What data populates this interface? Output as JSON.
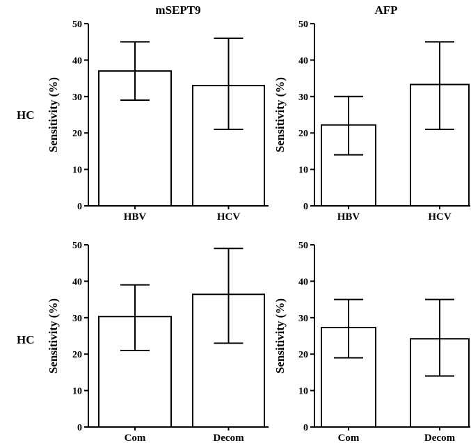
{
  "row_labels": [
    "HC",
    "HC"
  ],
  "chart_data": [
    {
      "type": "bar",
      "title": "mSEPT9",
      "ylabel": "Sensitivity (%)",
      "xlabel": "",
      "ylim": [
        0,
        50
      ],
      "yticks": [
        0,
        10,
        20,
        30,
        40,
        50
      ],
      "categories": [
        "HBV",
        "HCV"
      ],
      "values": [
        37,
        33
      ],
      "error_low": [
        29,
        21
      ],
      "error_high": [
        45,
        46
      ]
    },
    {
      "type": "bar",
      "title": "AFP",
      "ylabel": "Sensitivity (%)",
      "xlabel": "",
      "ylim": [
        0,
        50
      ],
      "yticks": [
        0,
        10,
        20,
        30,
        40,
        50
      ],
      "categories": [
        "HBV",
        "HCV"
      ],
      "values": [
        22.2,
        33.3
      ],
      "error_low": [
        14,
        21
      ],
      "error_high": [
        30,
        45
      ]
    },
    {
      "type": "bar",
      "title": "",
      "ylabel": "Sensitivity (%)",
      "xlabel": "",
      "ylim": [
        0,
        50
      ],
      "yticks": [
        0,
        10,
        20,
        30,
        40,
        50
      ],
      "categories": [
        "Com",
        "Decom"
      ],
      "values": [
        30.3,
        36.4
      ],
      "error_low": [
        21,
        23
      ],
      "error_high": [
        39,
        49
      ]
    },
    {
      "type": "bar",
      "title": "",
      "ylabel": "Sensitivity (%)",
      "xlabel": "",
      "ylim": [
        0,
        50
      ],
      "yticks": [
        0,
        10,
        20,
        30,
        40,
        50
      ],
      "categories": [
        "Com",
        "Decom"
      ],
      "values": [
        27.3,
        24.2
      ],
      "error_low": [
        19,
        14
      ],
      "error_high": [
        35,
        35
      ]
    }
  ]
}
